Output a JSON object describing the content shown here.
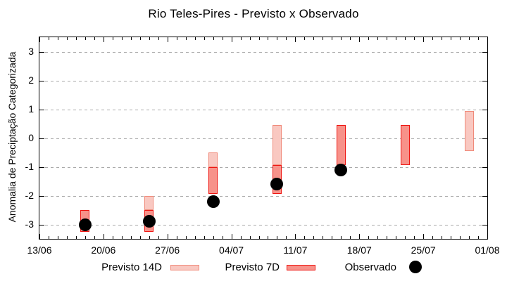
{
  "chart": {
    "title": "Rio Teles-Pires - Previsto x Observado",
    "ylabel": "Anomalia de Preciptação Categorizada",
    "legend": {
      "p14": "Previsto 14D",
      "p7": "Previsto 7D",
      "obs": "Observado"
    }
  },
  "colors": {
    "previsto_14d_fill": "#f9c8c1",
    "previsto_14d_border": "#f08a7a",
    "previsto_7d_fill": "#f7928a",
    "previsto_7d_border": "#ee1511",
    "observado": "#000000",
    "grid": "#a9a9a9",
    "frame": "#000000"
  },
  "chart_data": {
    "type": "bar",
    "subtype": "range-bars-with-scatter",
    "title": "Rio Teles-Pires - Previsto x Observado",
    "xlabel": "",
    "ylabel": "Anomalia de Preciptação Categorizada",
    "ylim": [
      -3.5,
      3.5
    ],
    "y_ticks": [
      3,
      2,
      1,
      0,
      -1,
      -2,
      -3
    ],
    "grid": "horizontal dashed at integer y values",
    "legend_position": "bottom-center",
    "x_axis": {
      "unit": "days",
      "range_days": [
        0,
        49
      ],
      "tick_days": [
        0,
        7,
        14,
        21,
        28,
        35,
        42,
        49
      ],
      "tick_labels": [
        "13/06",
        "20/06",
        "27/06",
        "04/07",
        "11/07",
        "18/07",
        "25/07",
        "01/08"
      ],
      "minor_tick_every_days": 1
    },
    "series": [
      {
        "name": "Previsto 14D",
        "kind": "range-bar",
        "points": [
          {
            "date": "25/06",
            "day": 12,
            "high": -2.0,
            "low": -2.5
          },
          {
            "date": "02/07",
            "day": 19,
            "high": -0.5,
            "low": -1.0
          },
          {
            "date": "09/07",
            "day": 26,
            "high": 0.45,
            "low": -0.95
          },
          {
            "date": "30/07",
            "day": 47,
            "high": 0.95,
            "low": -0.45
          }
        ]
      },
      {
        "name": "Previsto 7D",
        "kind": "range-bar",
        "points": [
          {
            "date": "18/06",
            "day": 5,
            "high": -2.5,
            "low": -3.25
          },
          {
            "date": "25/06",
            "day": 12,
            "high": -2.5,
            "low": -3.25
          },
          {
            "date": "02/07",
            "day": 19,
            "high": -1.0,
            "low": -1.95
          },
          {
            "date": "09/07",
            "day": 26,
            "high": -0.95,
            "low": -1.95
          },
          {
            "date": "16/07",
            "day": 33,
            "high": 0.45,
            "low": -0.95
          },
          {
            "date": "23/07",
            "day": 40,
            "high": 0.45,
            "low": -0.95
          }
        ]
      },
      {
        "name": "Observado",
        "kind": "scatter",
        "points": [
          {
            "date": "18/06",
            "day": 5,
            "value": -3.0
          },
          {
            "date": "25/06",
            "day": 12,
            "value": -2.9
          },
          {
            "date": "02/07",
            "day": 19,
            "value": -2.2
          },
          {
            "date": "09/07",
            "day": 26,
            "value": -1.6
          },
          {
            "date": "16/07",
            "day": 33,
            "value": -1.1
          }
        ]
      }
    ]
  }
}
